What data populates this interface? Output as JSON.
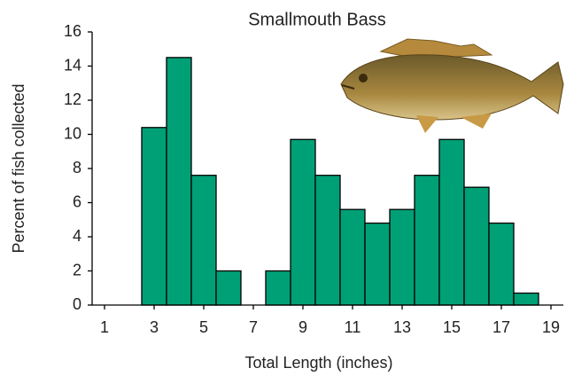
{
  "chart_data": {
    "type": "histogram",
    "title": "Smallmouth Bass",
    "x_label": "Total Length (inches)",
    "y_label": "Percent of fish collected",
    "bins": [
      2.5,
      3.5,
      4.5,
      5.5,
      6.5,
      7.5,
      8.5,
      9.5,
      10.5,
      11.5,
      12.5,
      13.5,
      14.5,
      15.5,
      16.5,
      17.5,
      18.5
    ],
    "values": [
      10.4,
      14.5,
      7.6,
      2.0,
      0,
      2.0,
      9.7,
      7.6,
      5.6,
      4.8,
      5.6,
      7.6,
      9.7,
      6.9,
      4.8,
      0.7
    ],
    "color": "#00a077",
    "xlim": [
      0.5,
      19.5
    ],
    "xticks": [
      1,
      3,
      5,
      7,
      9,
      11,
      13,
      15,
      17,
      19
    ],
    "ylim": [
      0,
      16
    ],
    "yticks": [
      0,
      2,
      4,
      6,
      8,
      10,
      12,
      14,
      16
    ]
  }
}
